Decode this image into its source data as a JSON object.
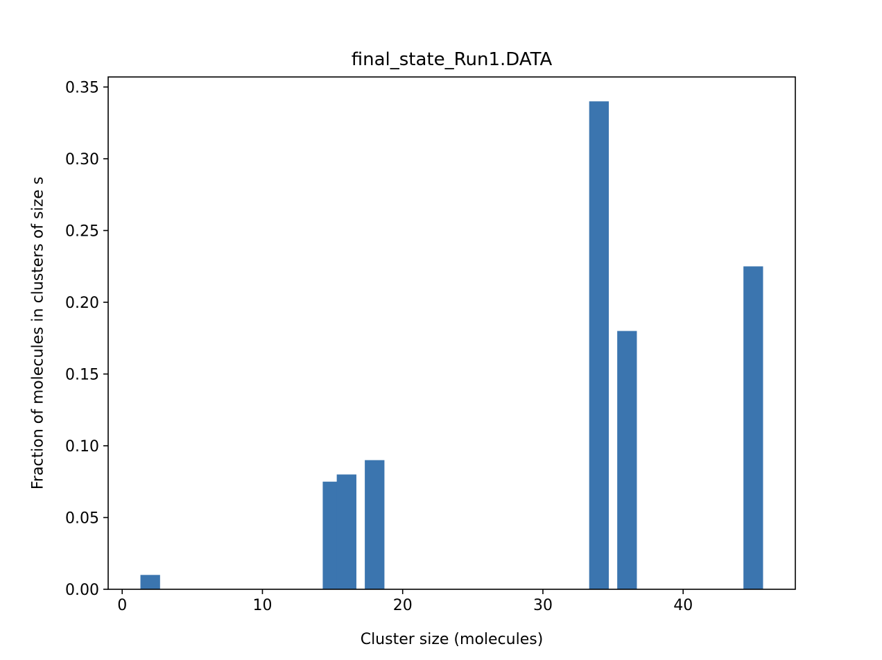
{
  "chart_data": {
    "type": "bar",
    "title": "final_state_Run1.DATA",
    "xlabel": "Cluster size (molecules)",
    "ylabel": "Fraction of molecules in clusters of size s",
    "xlim": [
      -1.0,
      48.0
    ],
    "ylim": [
      0,
      0.357
    ],
    "bar_width": 1.4,
    "bar_color": "#3b75af",
    "grid": false,
    "legend": "none",
    "x": [
      2,
      15,
      16,
      18,
      34,
      36,
      45
    ],
    "values": [
      0.01,
      0.075,
      0.08,
      0.09,
      0.34,
      0.18,
      0.225
    ],
    "xticks": [
      0,
      10,
      20,
      30,
      40
    ],
    "xtick_labels": [
      "0",
      "10",
      "20",
      "30",
      "40"
    ],
    "yticks": [
      0.0,
      0.05,
      0.1,
      0.15,
      0.2,
      0.25,
      0.3,
      0.35
    ],
    "ytick_labels": [
      "0.00",
      "0.05",
      "0.10",
      "0.15",
      "0.20",
      "0.25",
      "0.30",
      "0.35"
    ]
  }
}
